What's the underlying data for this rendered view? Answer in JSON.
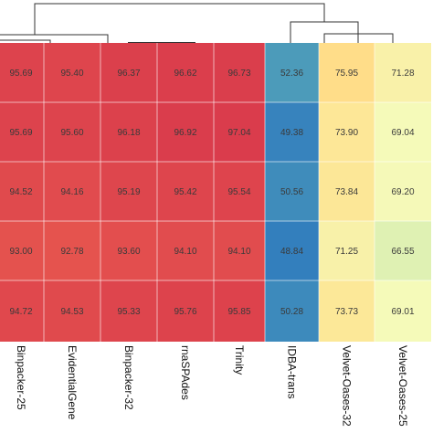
{
  "chart_data": {
    "type": "heatmap",
    "columns": [
      "Binpacker-25",
      "EvidentialGene",
      "Binpacker-32",
      "rnaSPAdes",
      "Trinity",
      "IDBA-trans",
      "Velvet-Oases-32",
      "Velvet-Oases-25"
    ],
    "values": [
      [
        95.69,
        95.4,
        96.37,
        96.62,
        96.73,
        52.36,
        75.95,
        71.28
      ],
      [
        95.69,
        95.6,
        96.18,
        96.92,
        97.04,
        49.38,
        73.9,
        69.04
      ],
      [
        94.52,
        94.16,
        95.19,
        95.42,
        95.54,
        50.56,
        73.84,
        69.2
      ],
      [
        93.0,
        92.78,
        93.6,
        94.1,
        94.1,
        48.84,
        71.25,
        66.55
      ],
      [
        94.72,
        94.53,
        95.33,
        95.76,
        95.85,
        50.28,
        73.73,
        69.01
      ]
    ],
    "value_range": [
      48,
      98
    ],
    "colormap": "spectral (blue low, yellow mid, red high)",
    "column_dendrogram": true,
    "legend": "none"
  }
}
